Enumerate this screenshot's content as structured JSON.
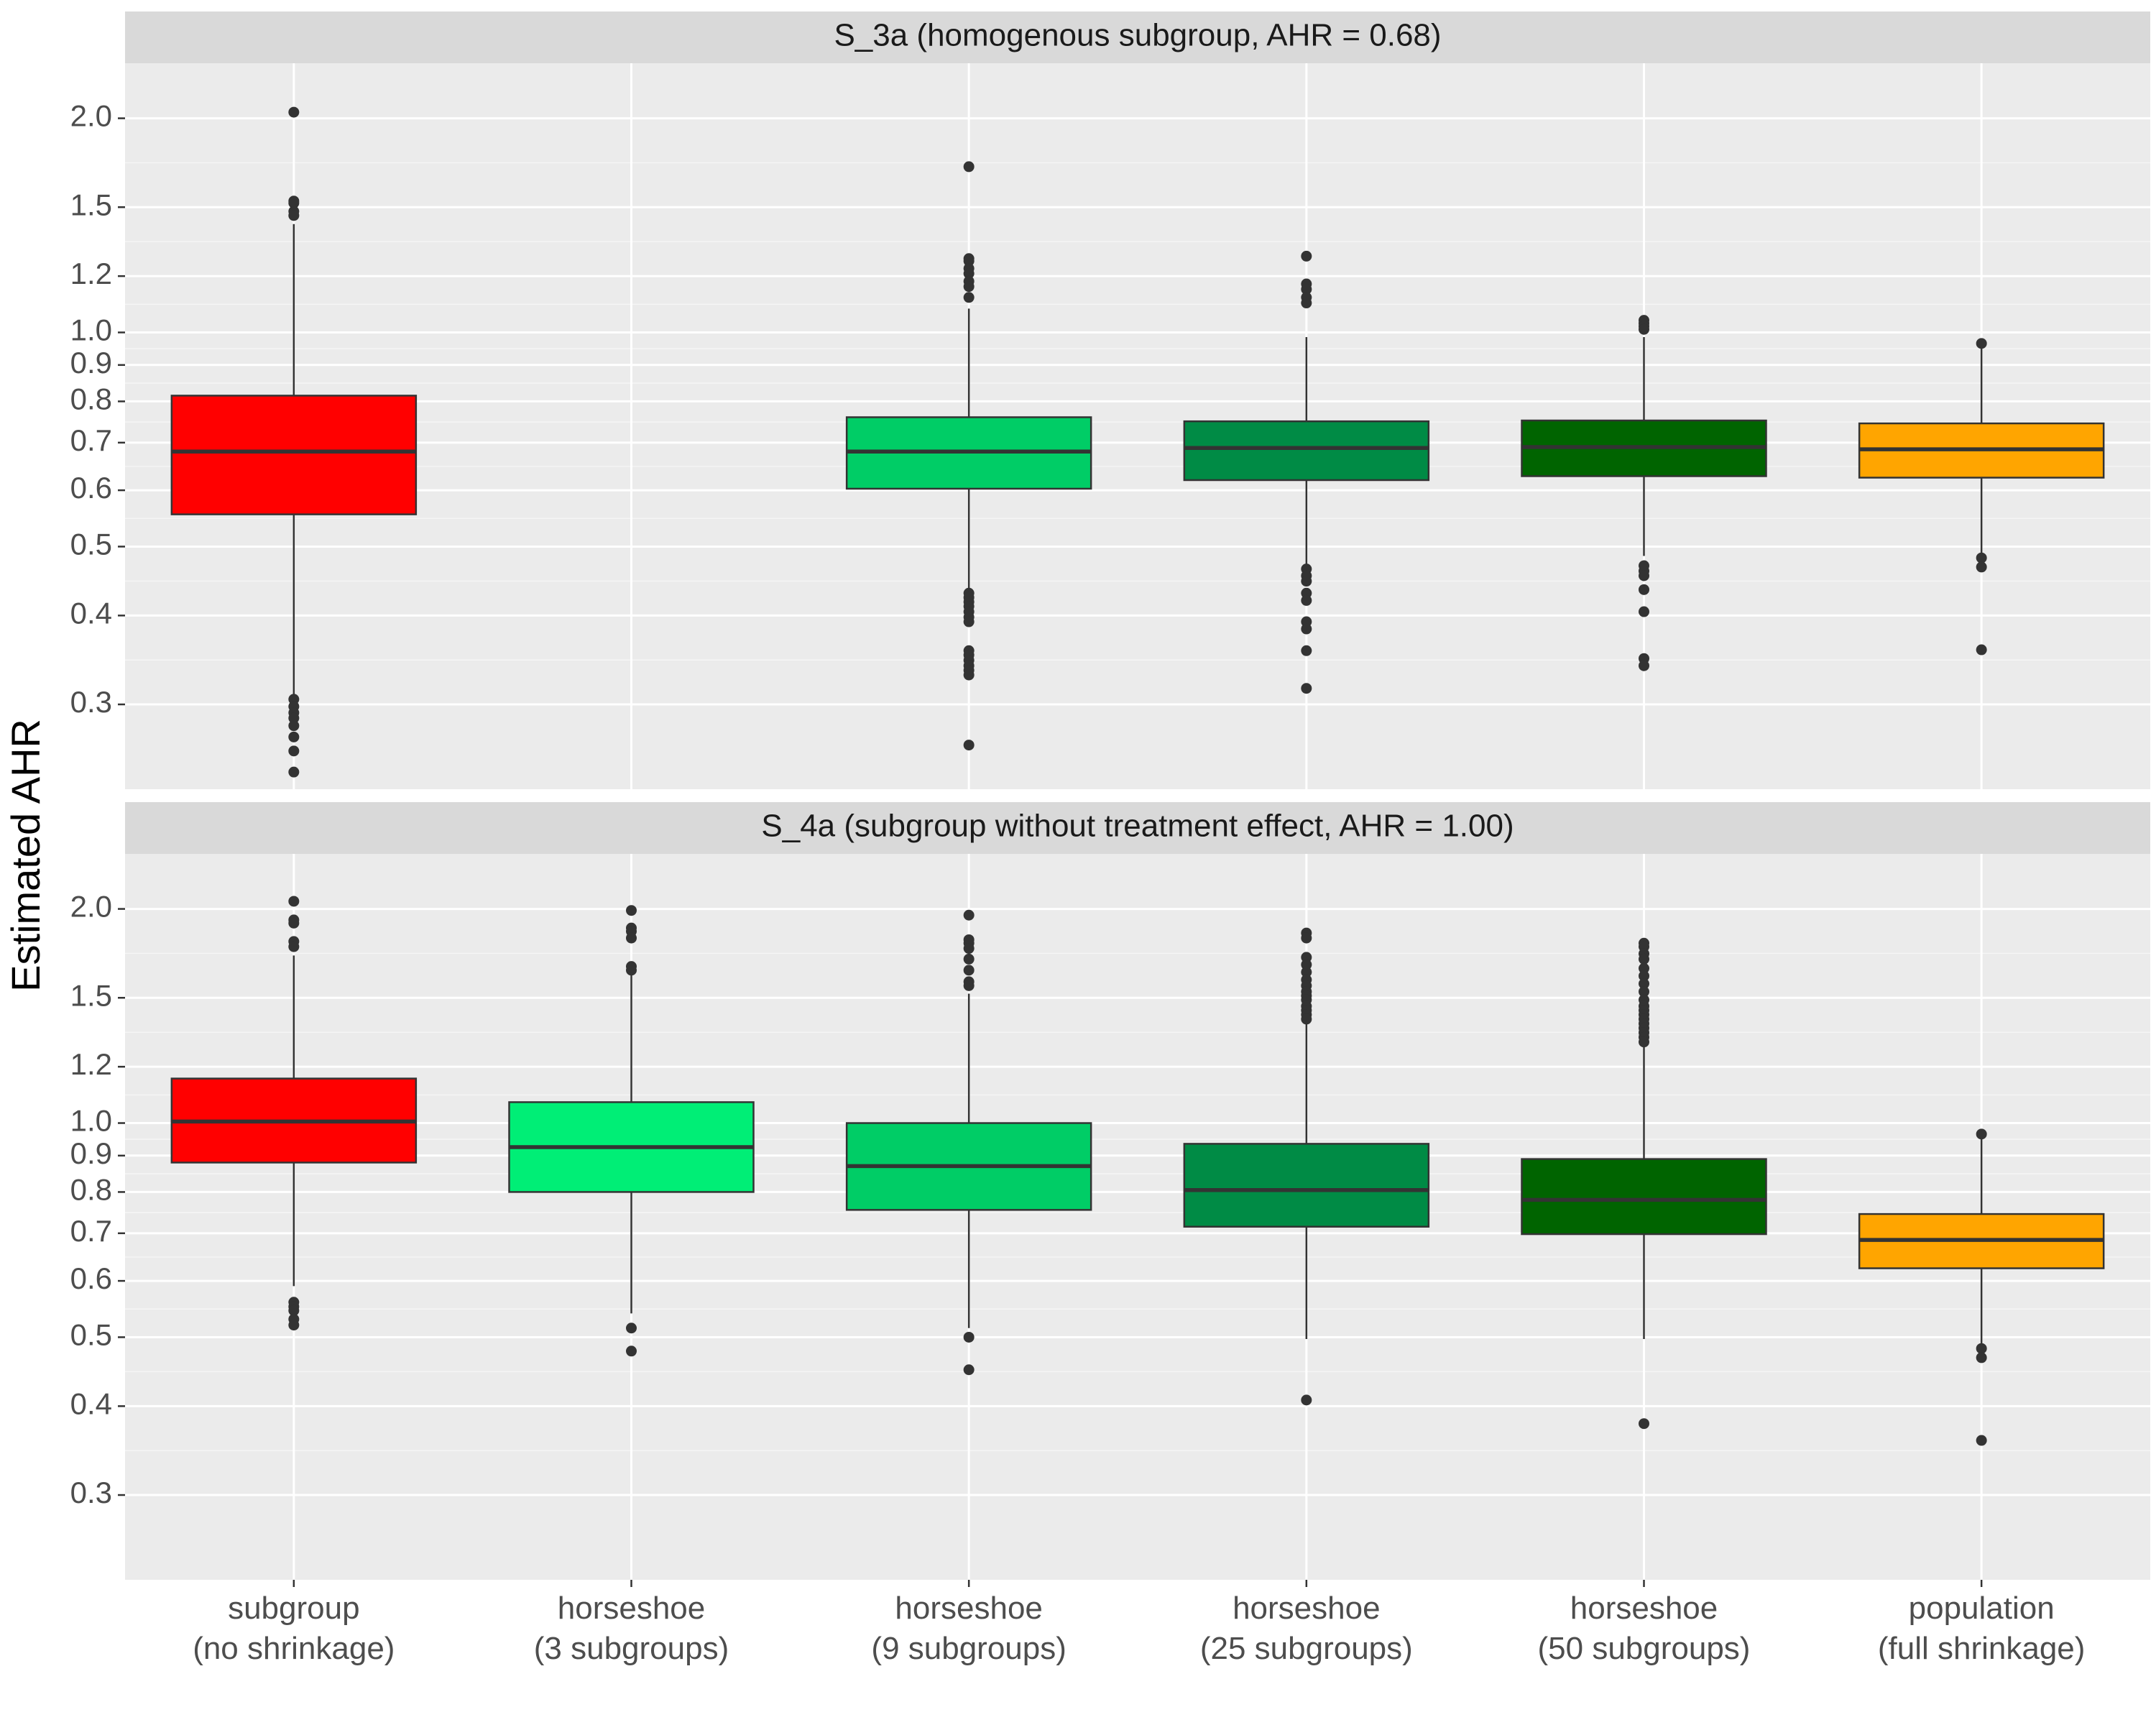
{
  "chart_data": {
    "type": "boxplot",
    "ylabel": "Estimated AHR",
    "yscale": "log",
    "ylim": [
      0.228,
      2.39
    ],
    "yticks": [
      0.3,
      0.4,
      0.5,
      0.6,
      0.7,
      0.8,
      0.9,
      1.0,
      1.2,
      1.5,
      2.0
    ],
    "ytick_labels": [
      "0.3",
      "0.4",
      "0.5",
      "0.6",
      "0.7",
      "0.8",
      "0.9",
      "1.0",
      "1.2",
      "1.5",
      "2.0"
    ],
    "categories": [
      {
        "line1": "subgroup",
        "line2": "(no shrinkage)",
        "color": "#ff0000"
      },
      {
        "line1": "horseshoe",
        "line2": "(3 subgroups)",
        "color": "#00ee76"
      },
      {
        "line1": "horseshoe",
        "line2": "(9 subgroups)",
        "color": "#00cd66"
      },
      {
        "line1": "horseshoe",
        "line2": "(25 subgroups)",
        "color": "#008b45"
      },
      {
        "line1": "horseshoe",
        "line2": "(50 subgroups)",
        "color": "#006400"
      },
      {
        "line1": "population",
        "line2": "(full shrinkage)",
        "color": "#ffa500"
      }
    ],
    "panels": [
      {
        "title": "S_3a (homogenous subgroup, AHR = 0.68)",
        "boxes": [
          {
            "q1": 0.555,
            "median": 0.68,
            "q3": 0.815,
            "lower": 0.31,
            "upper": 1.42,
            "outliers": [
              2.04,
              1.53,
              1.52,
              1.48,
              1.46,
              0.305,
              0.298,
              0.292,
              0.287,
              0.28,
              0.27,
              0.258,
              0.241
            ]
          },
          null,
          {
            "q1": 0.603,
            "median": 0.68,
            "q3": 0.76,
            "lower": 0.436,
            "upper": 1.08,
            "outliers": [
              1.71,
              1.27,
              1.26,
              1.23,
              1.21,
              1.18,
              1.16,
              1.12,
              0.43,
              0.424,
              0.418,
              0.412,
              0.405,
              0.398,
              0.392,
              0.357,
              0.352,
              0.346,
              0.34,
              0.335,
              0.33,
              0.263
            ]
          },
          {
            "q1": 0.62,
            "median": 0.688,
            "q3": 0.75,
            "lower": 0.47,
            "upper": 0.985,
            "outliers": [
              1.28,
              1.17,
              1.15,
              1.12,
              1.1,
              0.465,
              0.455,
              0.447,
              0.43,
              0.42,
              0.392,
              0.383,
              0.357,
              0.316
            ]
          },
          {
            "q1": 0.628,
            "median": 0.69,
            "q3": 0.752,
            "lower": 0.485,
            "upper": 0.985,
            "outliers": [
              1.04,
              1.03,
              1.02,
              1.01,
              0.47,
              0.462,
              0.455,
              0.435,
              0.405,
              0.348,
              0.34
            ]
          },
          {
            "q1": 0.625,
            "median": 0.685,
            "q3": 0.745,
            "lower": 0.49,
            "upper": 0.965,
            "outliers": [
              0.965,
              0.482,
              0.468,
              0.358
            ]
          }
        ]
      },
      {
        "title": "S_4a (subgroup without treatment effect, AHR = 1.00)",
        "boxes": [
          {
            "q1": 0.88,
            "median": 1.005,
            "q3": 1.155,
            "lower": 0.59,
            "upper": 1.72,
            "outliers": [
              2.05,
              1.93,
              1.91,
              1.8,
              1.77,
              0.56,
              0.552,
              0.545,
              0.53,
              0.52
            ]
          },
          {
            "q1": 0.8,
            "median": 0.925,
            "q3": 1.07,
            "lower": 0.54,
            "upper": 1.62,
            "outliers": [
              1.99,
              1.88,
              1.86,
              1.82,
              1.66,
              1.64,
              0.515,
              0.478
            ]
          },
          {
            "q1": 0.755,
            "median": 0.87,
            "q3": 1.0,
            "lower": 0.515,
            "upper": 1.52,
            "outliers": [
              1.96,
              1.81,
              1.79,
              1.76,
              1.7,
              1.64,
              1.58,
              1.56,
              0.5,
              0.45
            ]
          },
          {
            "q1": 0.715,
            "median": 0.805,
            "q3": 0.935,
            "lower": 0.497,
            "upper": 1.38,
            "outliers": [
              1.85,
              1.82,
              1.71,
              1.67,
              1.63,
              1.59,
              1.56,
              1.53,
              1.51,
              1.49,
              1.46,
              1.44,
              1.42,
              1.4,
              0.408
            ]
          },
          {
            "q1": 0.698,
            "median": 0.78,
            "q3": 0.89,
            "lower": 0.497,
            "upper": 1.28,
            "outliers": [
              1.79,
              1.77,
              1.73,
              1.7,
              1.65,
              1.61,
              1.57,
              1.53,
              1.49,
              1.46,
              1.44,
              1.42,
              1.4,
              1.38,
              1.36,
              1.34,
              1.32,
              1.3,
              0.378
            ]
          },
          {
            "q1": 0.625,
            "median": 0.685,
            "q3": 0.745,
            "lower": 0.49,
            "upper": 0.965,
            "outliers": [
              0.965,
              0.482,
              0.468,
              0.358
            ]
          }
        ]
      }
    ]
  }
}
